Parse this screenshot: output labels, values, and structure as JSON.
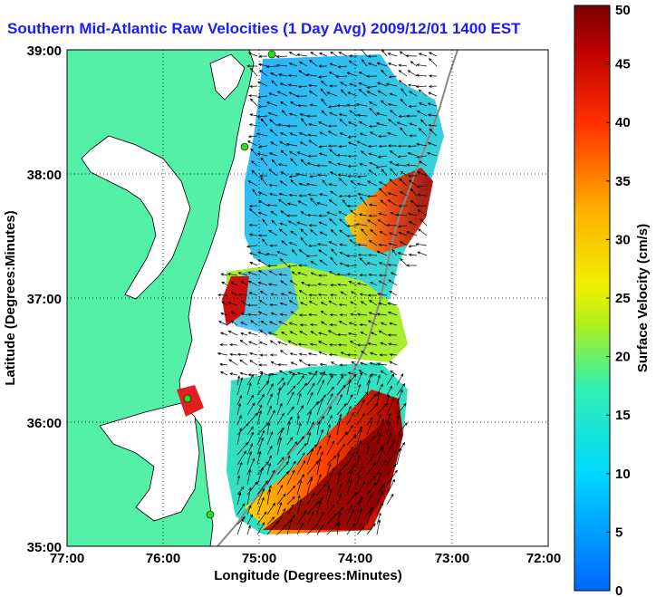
{
  "title": "Southern Mid-Atlantic Raw Velocities (1 Day Avg) 2009/12/01 1400 EST",
  "axes": {
    "xlabel": "Longitude (Degrees:Minutes)",
    "ylabel": "Latitude (Degrees:Minutes)",
    "xticks": [
      "77:00",
      "76:00",
      "75:00",
      "74:00",
      "73:00",
      "72:00"
    ],
    "yticks": [
      "39:00",
      "38:00",
      "37:00",
      "36:00",
      "35:00"
    ]
  },
  "colorbar": {
    "label": "Surface Velocity (cm/s)",
    "ticks": [
      "0",
      "5",
      "10",
      "15",
      "20",
      "25",
      "30",
      "35",
      "40",
      "45",
      "50"
    ],
    "min": 0,
    "max": 50
  },
  "colors": {
    "land": "#55f0a8",
    "title": "#1a1aff",
    "station": "#22dd22"
  }
}
